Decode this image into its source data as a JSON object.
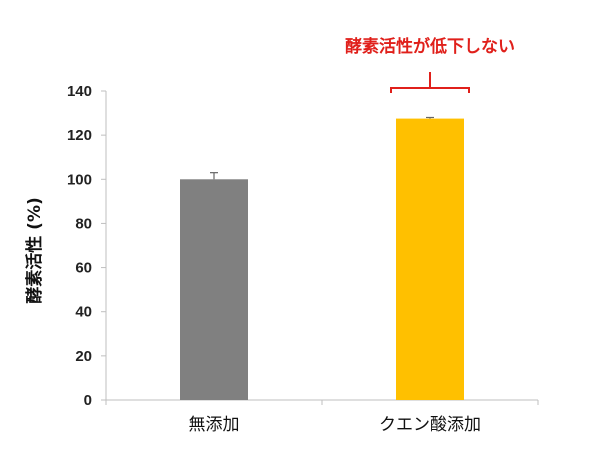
{
  "chart_data": {
    "type": "bar",
    "categories": [
      "無添加",
      "クエン酸添加"
    ],
    "values": [
      100,
      127.5
    ],
    "errors": [
      3,
      0.5
    ],
    "ylabel": "酵素活性 (%)",
    "xlabel": "",
    "ylim": [
      0,
      140
    ],
    "yticks": [
      0,
      20,
      40,
      60,
      80,
      100,
      120,
      140
    ],
    "grid": false,
    "legend": "none",
    "colors": [
      "#808080",
      "#ffc000"
    ],
    "annotation": {
      "text": "酵素活性が低下しない",
      "target_category": "クエン酸添加",
      "color": "#e0201b"
    }
  }
}
